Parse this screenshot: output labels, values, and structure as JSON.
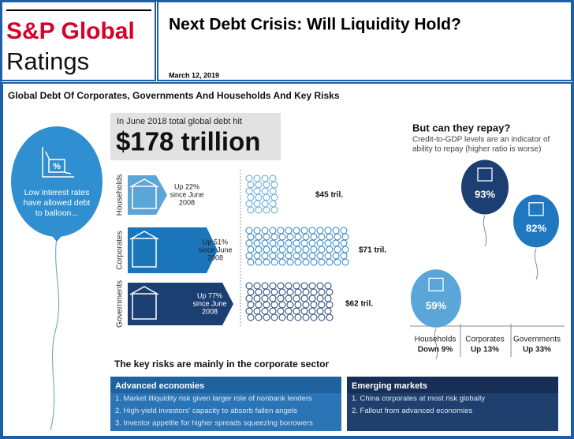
{
  "header": {
    "logo_top": "S&P Global",
    "logo_bottom": "Ratings",
    "title": "Next Debt Crisis: Will Liquidity Hold?",
    "date": "March 12, 2019"
  },
  "infographic": {
    "title": "Global Debt Of Corporates, Governments And Households And Key Risks",
    "balloon_lines": [
      "Low interest rates",
      "have allowed debt",
      "to balloon..."
    ],
    "headline": {
      "intro": "In June 2018 total global debt hit",
      "amount": "$178 trillion"
    },
    "sectors": [
      {
        "name": "Households",
        "change_lines": [
          "Up 22%",
          "since June",
          "2008"
        ],
        "debt": "$45 tril."
      },
      {
        "name": "Corporates",
        "change_lines": [
          "Up 51%",
          "since June",
          "2008"
        ],
        "debt": "$71 tril."
      },
      {
        "name": "Governments",
        "change_lines": [
          "Up 77%",
          "since June",
          "2008"
        ],
        "debt": "$62 tril."
      }
    ],
    "repay": {
      "title": "But can they repay?",
      "subtitle_lines": [
        "Credit-to-GDP levels are an indicator of",
        "ability to repay (higher ratio is worse)"
      ],
      "balloons": [
        {
          "percent": "59%",
          "sector": "Households",
          "change": "Down 9%"
        },
        {
          "percent": "93%",
          "sector": "Corporates",
          "change": "Up 13%"
        },
        {
          "percent": "82%",
          "sector": "Governments",
          "change": "Up 33%"
        }
      ]
    },
    "risks": {
      "title": "The key risks are mainly in the corporate sector",
      "advanced": {
        "heading": "Advanced economies",
        "items": [
          "1. Market illiquidity risk given larger role of nonbank lenders",
          "2. High-yield investors' capacity to absorb fallen angels",
          "3. Investor appetite for higher spreads squeezing borrowers"
        ]
      },
      "emerging": {
        "heading": "Emerging markets",
        "items": [
          "1. China corporates at most risk globally",
          "2. Fallout from advanced economies"
        ]
      }
    }
  }
}
